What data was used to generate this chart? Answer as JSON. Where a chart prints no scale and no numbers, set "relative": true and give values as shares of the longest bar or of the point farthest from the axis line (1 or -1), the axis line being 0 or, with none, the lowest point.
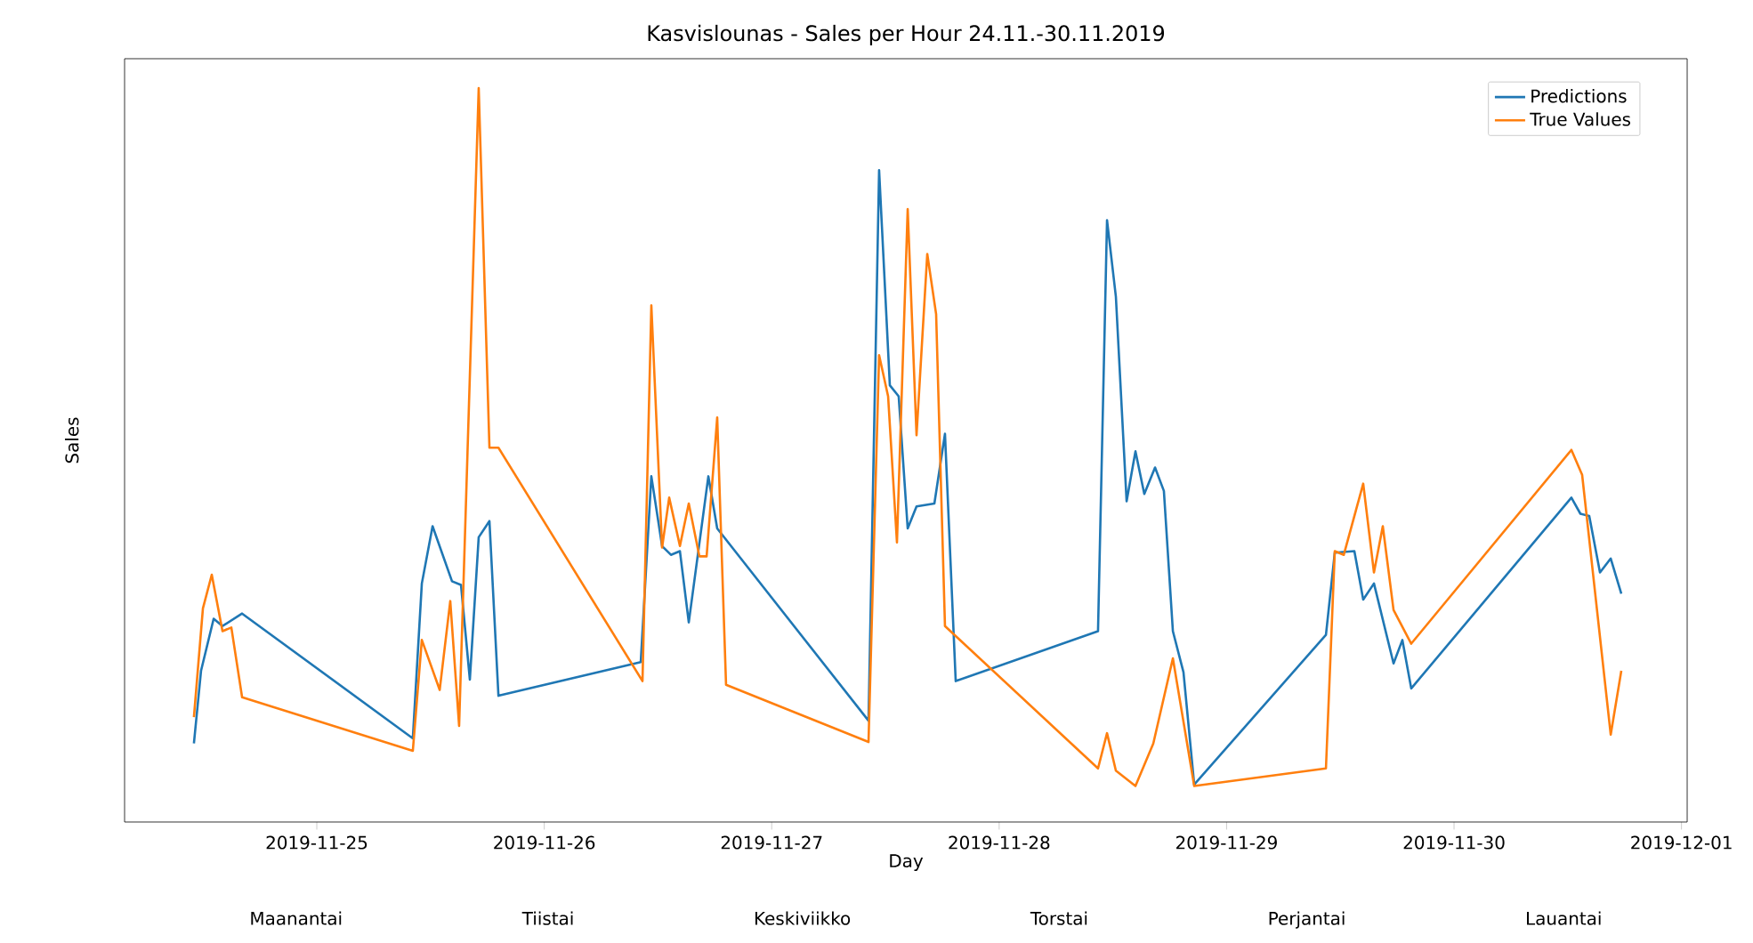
{
  "chart_data": {
    "type": "line",
    "title": "Kasvislounas - Sales per Hour 24.11.-30.11.2019",
    "xlabel": "Day",
    "ylabel": "Sales",
    "relative": true,
    "legend": "top right",
    "xlim": [
      "2019-11-24T03:43",
      "2019-12-01T00:36"
    ],
    "xticks": [
      "2019-11-25",
      "2019-11-26",
      "2019-11-27",
      "2019-11-28",
      "2019-11-29",
      "2019-11-30",
      "2019-12-01"
    ],
    "annotations": [
      "Maanantai",
      "Tiistai",
      "Keskiviikko",
      "Torstai",
      "Perjantai",
      "Lauantai"
    ],
    "series": [
      {
        "name": "Predictions",
        "color": "#1f77b4",
        "x": [
          "2019-11-24T11:02",
          "2019-11-24T11:47",
          "2019-11-24T13:07",
          "2019-11-24T14:03",
          "2019-11-24T16:07",
          "2019-11-25T10:08",
          "2019-11-25T11:05",
          "2019-11-25T12:13",
          "2019-11-25T14:16",
          "2019-11-25T15:13",
          "2019-11-25T16:09",
          "2019-11-25T17:05",
          "2019-11-25T18:13",
          "2019-11-25T19:10",
          "2019-11-26T10:11",
          "2019-11-26T11:18",
          "2019-11-26T12:26",
          "2019-11-26T13:22",
          "2019-11-26T14:19",
          "2019-11-26T15:15",
          "2019-11-26T17:19",
          "2019-11-26T18:15",
          "2019-11-27T10:13",
          "2019-11-27T11:20",
          "2019-11-27T12:28",
          "2019-11-27T13:24",
          "2019-11-27T14:21",
          "2019-11-27T15:17",
          "2019-11-27T17:10",
          "2019-11-27T18:17",
          "2019-11-27T19:25",
          "2019-11-28T10:26",
          "2019-11-28T11:23",
          "2019-11-28T12:19",
          "2019-11-28T13:27",
          "2019-11-28T14:23",
          "2019-11-28T15:19",
          "2019-11-28T16:27",
          "2019-11-28T17:23",
          "2019-11-28T18:20",
          "2019-11-28T19:27",
          "2019-11-28T20:35",
          "2019-11-29T10:29",
          "2019-11-29T11:25",
          "2019-11-29T13:29",
          "2019-11-29T14:25",
          "2019-11-29T15:33",
          "2019-11-29T17:37",
          "2019-11-29T18:33",
          "2019-11-29T19:29",
          "2019-11-30T12:23",
          "2019-11-30T13:20",
          "2019-11-30T14:16",
          "2019-11-30T15:24",
          "2019-11-30T16:32",
          "2019-11-30T17:39"
        ],
        "values": [
          0.107,
          0.206,
          0.277,
          0.267,
          0.284,
          0.114,
          0.325,
          0.403,
          0.328,
          0.323,
          0.194,
          0.388,
          0.41,
          0.172,
          0.218,
          0.471,
          0.376,
          0.364,
          0.369,
          0.272,
          0.471,
          0.4,
          0.138,
          0.888,
          0.595,
          0.58,
          0.4,
          0.43,
          0.434,
          0.529,
          0.192,
          0.26,
          0.82,
          0.716,
          0.437,
          0.505,
          0.447,
          0.483,
          0.451,
          0.26,
          0.204,
          0.051,
          0.255,
          0.367,
          0.369,
          0.303,
          0.325,
          0.216,
          0.248,
          0.182,
          0.442,
          0.42,
          0.417,
          0.34,
          0.359,
          0.311
        ]
      },
      {
        "name": "True Values",
        "color": "#ff7f0e",
        "x": [
          "2019-11-24T11:02",
          "2019-11-24T11:59",
          "2019-11-24T12:55",
          "2019-11-24T14:03",
          "2019-11-24T14:59",
          "2019-11-24T16:07",
          "2019-11-25T10:08",
          "2019-11-25T11:05",
          "2019-11-25T12:58",
          "2019-11-25T14:05",
          "2019-11-25T15:01",
          "2019-11-25T17:05",
          "2019-11-25T18:13",
          "2019-11-25T19:10",
          "2019-11-26T10:22",
          "2019-11-26T11:18",
          "2019-11-26T12:26",
          "2019-11-26T13:11",
          "2019-11-26T14:19",
          "2019-11-26T15:15",
          "2019-11-26T16:22",
          "2019-11-26T17:08",
          "2019-11-26T18:15",
          "2019-11-26T19:11",
          "2019-11-27T10:13",
          "2019-11-27T11:20",
          "2019-11-27T12:17",
          "2019-11-27T13:13",
          "2019-11-27T14:21",
          "2019-11-27T15:17",
          "2019-11-27T16:25",
          "2019-11-27T17:21",
          "2019-11-27T18:17",
          "2019-11-28T10:26",
          "2019-11-28T11:23",
          "2019-11-28T12:19",
          "2019-11-28T14:23",
          "2019-11-28T16:16",
          "2019-11-28T18:20",
          "2019-11-28T20:35",
          "2019-11-29T10:29",
          "2019-11-29T11:25",
          "2019-11-29T12:22",
          "2019-11-29T14:25",
          "2019-11-29T15:33",
          "2019-11-29T16:29",
          "2019-11-29T17:37",
          "2019-11-29T19:29",
          "2019-11-30T12:23",
          "2019-11-30T13:31",
          "2019-11-30T16:32",
          "2019-11-30T17:39"
        ],
        "values": [
          0.143,
          0.291,
          0.337,
          0.26,
          0.265,
          0.17,
          0.097,
          0.248,
          0.18,
          0.301,
          0.131,
          1,
          0.51,
          0.51,
          0.192,
          0.704,
          0.374,
          0.442,
          0.376,
          0.434,
          0.362,
          0.362,
          0.551,
          0.187,
          0.109,
          0.636,
          0.58,
          0.381,
          0.835,
          0.527,
          0.774,
          0.692,
          0.267,
          0.073,
          0.121,
          0.07,
          0.049,
          0.107,
          0.223,
          0.049,
          0.073,
          0.369,
          0.364,
          0.461,
          0.34,
          0.403,
          0.289,
          0.243,
          0.507,
          0.473,
          0.119,
          0.206
        ]
      }
    ]
  }
}
